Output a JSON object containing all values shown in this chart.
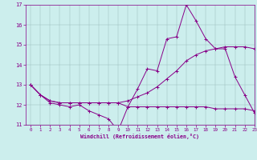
{
  "xlabel": "Windchill (Refroidissement éolien,°C)",
  "xlim": [
    -0.5,
    23
  ],
  "ylim": [
    11,
    17
  ],
  "yticks": [
    11,
    12,
    13,
    14,
    15,
    16,
    17
  ],
  "xticks": [
    0,
    1,
    2,
    3,
    4,
    5,
    6,
    7,
    8,
    9,
    10,
    11,
    12,
    13,
    14,
    15,
    16,
    17,
    18,
    19,
    20,
    21,
    22,
    23
  ],
  "bg_color": "#cceeed",
  "line_color": "#880088",
  "line1_x": [
    0,
    1,
    2,
    3,
    4,
    5,
    6,
    7,
    8,
    9,
    10,
    11,
    12,
    13,
    14,
    15,
    16,
    17,
    18,
    19,
    20,
    21,
    22,
    23
  ],
  "line1_y": [
    13.0,
    12.5,
    12.1,
    12.0,
    11.9,
    12.0,
    11.7,
    11.5,
    11.3,
    10.7,
    11.9,
    12.8,
    13.8,
    13.7,
    15.3,
    15.4,
    17.0,
    16.2,
    15.3,
    14.8,
    14.8,
    13.4,
    12.5,
    11.6
  ],
  "line2_x": [
    0,
    1,
    2,
    3,
    4,
    5,
    6,
    7,
    8,
    9,
    10,
    11,
    12,
    13,
    14,
    15,
    16,
    17,
    18,
    19,
    20,
    21,
    22,
    23
  ],
  "line2_y": [
    13.0,
    12.5,
    12.2,
    12.1,
    12.1,
    12.1,
    12.1,
    12.1,
    12.1,
    12.1,
    12.2,
    12.4,
    12.6,
    12.9,
    13.3,
    13.7,
    14.2,
    14.5,
    14.7,
    14.8,
    14.9,
    14.9,
    14.9,
    14.8
  ],
  "line3_x": [
    0,
    1,
    2,
    3,
    4,
    5,
    6,
    7,
    8,
    9,
    10,
    11,
    12,
    13,
    14,
    15,
    16,
    17,
    18,
    19,
    20,
    21,
    22,
    23
  ],
  "line3_y": [
    13.0,
    12.5,
    12.2,
    12.1,
    12.1,
    12.1,
    12.1,
    12.1,
    12.1,
    12.1,
    11.9,
    11.9,
    11.9,
    11.9,
    11.9,
    11.9,
    11.9,
    11.9,
    11.9,
    11.8,
    11.8,
    11.8,
    11.8,
    11.7
  ]
}
